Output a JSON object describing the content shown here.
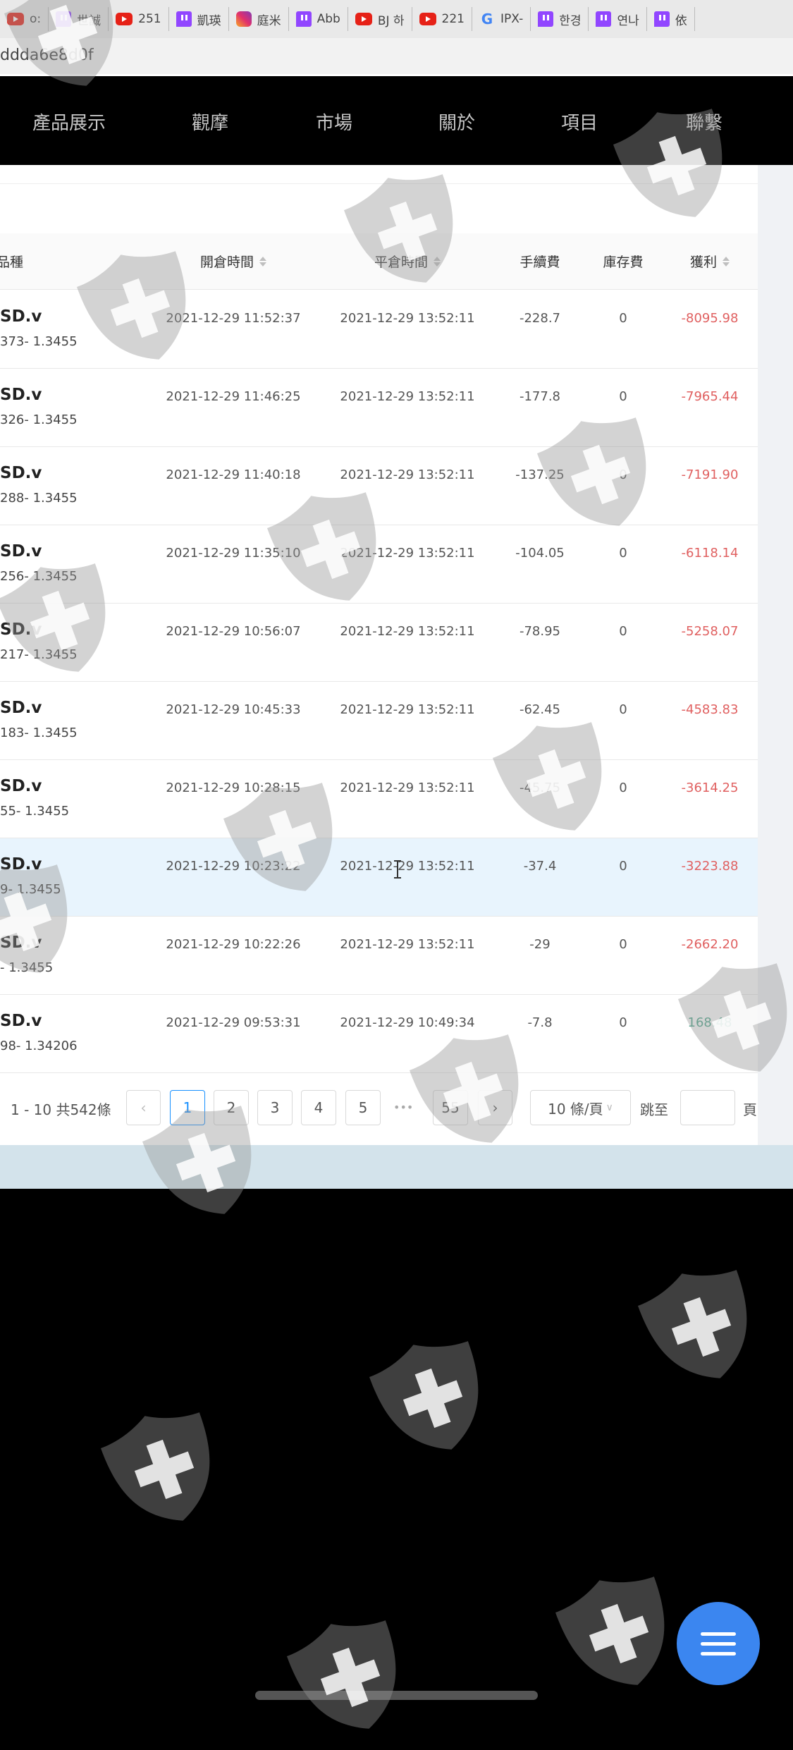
{
  "bookmarks": [
    {
      "icon": "youtube-icon",
      "label": "o:"
    },
    {
      "icon": "twitch-icon",
      "label": "世誠"
    },
    {
      "icon": "youtube-icon",
      "label": "251"
    },
    {
      "icon": "twitch-icon",
      "label": "凱瑛"
    },
    {
      "icon": "instagram-icon",
      "label": "庭米"
    },
    {
      "icon": "twitch-icon",
      "label": "Abb"
    },
    {
      "icon": "youtube-icon",
      "label": "BJ 하"
    },
    {
      "icon": "youtube-icon",
      "label": "221"
    },
    {
      "icon": "google-icon",
      "label": "IPX-"
    },
    {
      "icon": "twitch-icon",
      "label": "한경"
    },
    {
      "icon": "twitch-icon",
      "label": "연나"
    },
    {
      "icon": "twitch-icon",
      "label": "依"
    }
  ],
  "url": "ddda6e8d0f",
  "nav": [
    "產品展示",
    "觀摩",
    "市場",
    "關於",
    "項目",
    "聯繫"
  ],
  "table": {
    "headers": [
      "品種",
      "開倉時間",
      "平倉時間",
      "手續費",
      "庫存費",
      "獲利"
    ],
    "rows": [
      {
        "p1": "SD.v",
        "p2": "373- 1.3455",
        "open": "2021-12-29 11:52:37",
        "close": "2021-12-29 13:52:11",
        "fee": "-228.7",
        "storage": "0",
        "profit": "-8095.98"
      },
      {
        "p1": "SD.v",
        "p2": "326- 1.3455",
        "open": "2021-12-29 11:46:25",
        "close": "2021-12-29 13:52:11",
        "fee": "-177.8",
        "storage": "0",
        "profit": "-7965.44"
      },
      {
        "p1": "SD.v",
        "p2": "288- 1.3455",
        "open": "2021-12-29 11:40:18",
        "close": "2021-12-29 13:52:11",
        "fee": "-137.25",
        "storage": "0",
        "profit": "-7191.90"
      },
      {
        "p1": "SD.v",
        "p2": "256- 1.3455",
        "open": "2021-12-29 11:35:10",
        "close": "2021-12-29 13:52:11",
        "fee": "-104.05",
        "storage": "0",
        "profit": "-6118.14"
      },
      {
        "p1": "SD.v",
        "p2": "217- 1.3455",
        "open": "2021-12-29 10:56:07",
        "close": "2021-12-29 13:52:11",
        "fee": "-78.95",
        "storage": "0",
        "profit": "-5258.07"
      },
      {
        "p1": "SD.v",
        "p2": "183- 1.3455",
        "open": "2021-12-29 10:45:33",
        "close": "2021-12-29 13:52:11",
        "fee": "-62.45",
        "storage": "0",
        "profit": "-4583.83"
      },
      {
        "p1": "SD.v",
        "p2": "55- 1.3455",
        "open": "2021-12-29 10:28:15",
        "close": "2021-12-29 13:52:11",
        "fee": "-45.75",
        "storage": "0",
        "profit": "-3614.25"
      },
      {
        "p1": "SD.v",
        "p2": "9- 1.3455",
        "open": "2021-12-29 10:23:22",
        "close": "2021-12-29 13:52:11",
        "fee": "-37.4",
        "storage": "0",
        "profit": "-3223.88"
      },
      {
        "p1": "SD.v",
        "p2": "- 1.3455",
        "open": "2021-12-29 10:22:26",
        "close": "2021-12-29 13:52:11",
        "fee": "-29",
        "storage": "0",
        "profit": "-2662.20"
      },
      {
        "p1": "SD.v",
        "p2": "98- 1.34206",
        "open": "2021-12-29 09:53:31",
        "close": "2021-12-29 10:49:34",
        "fee": "-7.8",
        "storage": "0",
        "profit": "168.48"
      }
    ],
    "highlighted_row": 7
  },
  "pagination": {
    "summary": "1 - 10 共542條",
    "prev": "‹",
    "pages": [
      "1",
      "2",
      "3",
      "4",
      "5"
    ],
    "ellipsis": "•••",
    "last": "55",
    "next": "›",
    "current": "1",
    "page_size": "10 條/頁",
    "jump_label": "跳至",
    "jump_value": "",
    "page_suffix": "頁"
  },
  "colors": {
    "negative": "#e06060",
    "positive": "#52a88e",
    "accent": "#1890ff",
    "fab": "#3b86f0"
  }
}
